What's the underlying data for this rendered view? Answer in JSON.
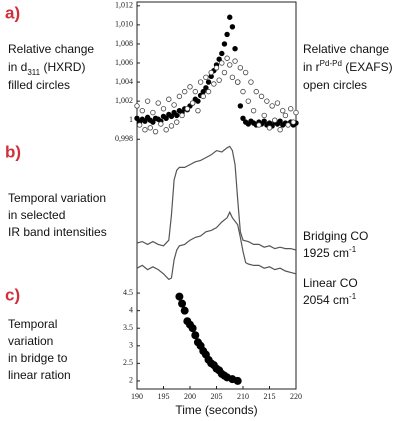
{
  "chart_data": [
    {
      "type": "scatter",
      "panel_label": "a)",
      "left_text": [
        [
          {
            "text": "Relative change"
          }
        ],
        [
          {
            "text": "in d"
          },
          {
            "text": "311",
            "shift": "sub"
          },
          {
            "text": " (HXRD)"
          }
        ],
        [
          {
            "text": "filled circles"
          }
        ]
      ],
      "right_text": [
        [
          {
            "text": "Relative change"
          }
        ],
        [
          {
            "text": "in r"
          },
          {
            "text": "Pd-Pd",
            "shift": "super"
          },
          {
            "text": " (EXAFS)"
          }
        ],
        [
          {
            "text": "open circles"
          }
        ]
      ],
      "xlim": [
        190,
        220
      ],
      "ylim": [
        0.9974,
        1.0124
      ],
      "yticks": [
        {
          "value": 1.012,
          "label": "1,012"
        },
        {
          "value": 1.01,
          "label": "1,010"
        },
        {
          "value": 1.008,
          "label": "1,008"
        },
        {
          "value": 1.006,
          "label": "1,006"
        },
        {
          "value": 1.004,
          "label": "1,004"
        },
        {
          "value": 1.002,
          "label": "1,002"
        },
        1,
        {
          "value": 0.998,
          "label": "0,998"
        }
      ],
      "series": [
        {
          "marker": "filled",
          "color": "#000000",
          "x": [
            190,
            190.5,
            191,
            191.5,
            192,
            192.5,
            193,
            193.5,
            194,
            194.5,
            195,
            195.5,
            196,
            196.5,
            197,
            197.5,
            198,
            198.5,
            199,
            199.5,
            200,
            200.5,
            201,
            201.5,
            202,
            202.5,
            203,
            203.5,
            204,
            204.5,
            205,
            205.5,
            206,
            206.5,
            207,
            207.5,
            208,
            208.5,
            209,
            209.5,
            210,
            210.5,
            211,
            211.5,
            212,
            212.5,
            213,
            213.5,
            214,
            214.5,
            215,
            215.5,
            216,
            216.5,
            217,
            217.5,
            218,
            218.5,
            219,
            219.5,
            220
          ],
          "values": [
            1.0002,
            0.9998,
            1.0001,
            0.9999,
            1.0003,
            1.0,
            0.9998,
            1.0002,
            1.0001,
            0.9999,
            1.0004,
            1.0002,
            1.0006,
            1.0004,
            1.0008,
            1.0005,
            1.001,
            1.0008,
            1.0012,
            1.0011,
            1.0015,
            1.0018,
            1.0022,
            1.002,
            1.0026,
            1.003,
            1.0034,
            1.004,
            1.0046,
            1.0052,
            1.0058,
            1.0064,
            1.007,
            1.008,
            1.009,
            1.0108,
            1.0098,
            1.0075,
            1.004,
            1.0015,
            1.0002,
            0.9998,
            0.9996,
            0.9999,
            0.9997,
            0.9995,
            0.9998,
            0.9996,
            0.9999,
            0.9995,
            0.9997,
            0.9994,
            0.9998,
            0.9996,
            0.9999,
            0.9995,
            0.9997,
            0.9996,
            0.9998,
            0.9995,
            0.9997
          ]
        },
        {
          "marker": "open",
          "color": "#444444",
          "x": [
            190,
            190.5,
            191,
            191.5,
            192,
            192.5,
            193,
            193.5,
            194,
            194.5,
            195,
            195.5,
            196,
            196.5,
            197,
            197.5,
            198,
            198.5,
            199,
            199.5,
            200,
            200.5,
            201,
            201.5,
            202,
            202.5,
            203,
            203.5,
            204,
            204.5,
            205,
            205.5,
            206,
            206.5,
            207,
            207.5,
            208,
            208.5,
            209,
            209.5,
            210,
            210.5,
            211,
            211.5,
            212,
            212.5,
            213,
            213.5,
            214,
            214.5,
            215,
            215.5,
            216,
            216.5,
            217,
            217.5,
            218,
            218.5,
            219,
            219.5,
            220
          ],
          "values": [
            1.0015,
            0.9995,
            1.001,
            0.999,
            1.002,
            0.9992,
            1.0008,
            0.9988,
            1.0018,
            0.9996,
            1.0012,
            0.999,
            1.0022,
            0.9994,
            1.0016,
            0.9998,
            1.0025,
            1.0005,
            1.003,
            1.0012,
            1.0035,
            1.0018,
            1.003,
            1.001,
            1.004,
            1.0025,
            1.0045,
            1.003,
            1.005,
            1.0038,
            1.0055,
            1.0042,
            1.006,
            1.005,
            1.0065,
            1.0058,
            1.0045,
            1.0062,
            1.004,
            1.0055,
            1.003,
            1.005,
            1.002,
            1.004,
            1.001,
            1.003,
            0.9995,
            1.0025,
            1.0005,
            1.002,
            0.9992,
            1.0015,
            1.0,
            1.0018,
            0.999,
            1.001,
            1.0005,
            0.9995,
            1.0012,
            0.9998,
            1.0008
          ]
        }
      ]
    },
    {
      "type": "line",
      "panel_label": "b)",
      "left_text": [
        [
          {
            "text": "Temporal variation"
          }
        ],
        [
          {
            "text": "in selected"
          }
        ],
        [
          {
            "text": "IR band intensities"
          }
        ]
      ],
      "right_text": [
        [
          {
            "text": "Bridging CO"
          }
        ],
        [
          {
            "text": "1925 cm"
          },
          {
            "text": "-1",
            "shift": "super"
          }
        ],
        [
          {
            "text": "Linear CO"
          }
        ],
        [
          {
            "text": "2054 cm"
          },
          {
            "text": "-1",
            "shift": "super"
          }
        ]
      ],
      "xlim": [
        190,
        220
      ],
      "ylim": [
        0,
        100
      ],
      "series": [
        {
          "color": "#555555",
          "x": [
            190,
            191,
            192,
            193,
            194,
            195,
            196,
            196.5,
            197,
            197.5,
            198,
            199,
            200,
            201,
            202,
            203,
            204,
            205,
            206,
            207,
            207.5,
            208,
            208.5,
            209,
            209.5,
            210,
            211,
            212,
            213,
            214,
            215,
            216,
            217,
            218,
            219,
            220
          ],
          "values": [
            30,
            31,
            29,
            31,
            29,
            28,
            32,
            50,
            75,
            82,
            84,
            84,
            86,
            88,
            89,
            91,
            93,
            96,
            95,
            98,
            99,
            96,
            86,
            61,
            38,
            32,
            31,
            29,
            29,
            27,
            28,
            26,
            27,
            26,
            26,
            25
          ]
        },
        {
          "color": "#555555",
          "x": [
            190,
            191,
            192,
            193,
            194,
            195,
            196,
            196.5,
            197,
            197.5,
            198,
            199,
            200,
            201,
            202,
            203,
            204,
            205,
            206,
            207,
            207.5,
            208,
            209,
            209.5,
            210,
            210.5,
            211,
            212,
            213,
            214,
            215,
            216,
            217,
            218,
            219,
            220
          ],
          "values": [
            12,
            14,
            11,
            13,
            11,
            8,
            4,
            5,
            18,
            25,
            28,
            29,
            32,
            34,
            35,
            38,
            39,
            41,
            45,
            48,
            52,
            48,
            43,
            34,
            24,
            16,
            15,
            14,
            14,
            12,
            13,
            11,
            12,
            10,
            9,
            8
          ]
        }
      ]
    },
    {
      "type": "scatter",
      "panel_label": "c)",
      "left_text": [
        [
          {
            "text": "Temporal"
          }
        ],
        [
          {
            "text": "variation"
          }
        ],
        [
          {
            "text": "in bridge to"
          }
        ],
        [
          {
            "text": "linear ration"
          }
        ]
      ],
      "xlim": [
        190,
        220
      ],
      "ylim": [
        1.77,
        4.73
      ],
      "xticks": [
        190,
        195,
        200,
        205,
        210,
        215,
        220
      ],
      "yticks": [
        4.5,
        4,
        3.5,
        3,
        2.5,
        2
      ],
      "xlabel": "Time (seconds)",
      "series": [
        {
          "marker": "filled",
          "color": "#000000",
          "x": [
            198,
            198.5,
            199,
            199.5,
            200,
            200.5,
            201,
            201.5,
            202,
            202.5,
            203,
            203.5,
            204,
            204.5,
            205,
            205.5,
            206,
            206.5,
            207,
            208,
            209
          ],
          "values": [
            4.4,
            4.2,
            4.0,
            3.7,
            3.6,
            3.5,
            3.3,
            3.1,
            3.0,
            2.85,
            2.75,
            2.6,
            2.5,
            2.45,
            2.35,
            2.3,
            2.2,
            2.15,
            2.1,
            2.05,
            2.0
          ]
        }
      ]
    }
  ]
}
